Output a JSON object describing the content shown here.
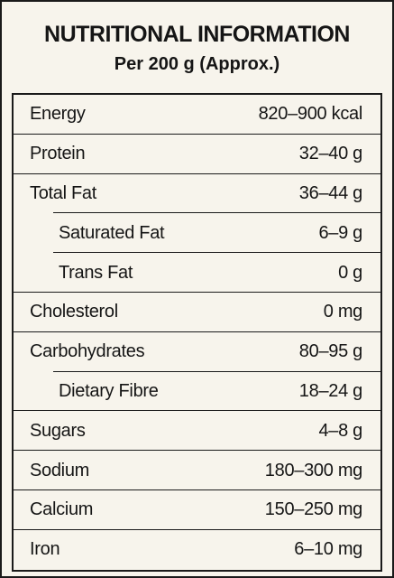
{
  "header": {
    "title": "NUTRITIONAL INFORMATION",
    "subtitle": "Per 200 g (Approx.)"
  },
  "table": {
    "rows": [
      [
        "Energy",
        "820–900 kcal"
      ],
      [
        "Protein",
        "32–40 g"
      ],
      [
        "Total Fat",
        "36–44 g"
      ],
      [
        "Saturated Fat",
        "6–9 g"
      ],
      [
        "Trans Fat",
        "0 g"
      ],
      [
        "Cholesterol",
        "0 mg"
      ],
      [
        "Carbohydrates",
        "80–95 g"
      ],
      [
        "Dietary Fibre",
        "18–24 g"
      ],
      [
        "Sugars",
        "4–8 g"
      ],
      [
        "Sodium",
        "180–300 mg"
      ],
      [
        "Calcium",
        "150–250 mg"
      ],
      [
        "Iron",
        "6–10 mg"
      ]
    ]
  }
}
